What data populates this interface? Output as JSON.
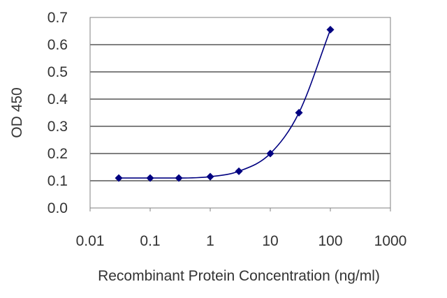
{
  "chart_data": {
    "type": "scatter",
    "title": "",
    "xlabel": "Recombinant Protein Concentration (ng/ml)",
    "ylabel": "OD 450",
    "x_scale": "log",
    "xlim": [
      0.01,
      1000
    ],
    "ylim": [
      0.0,
      0.7
    ],
    "x_ticks": [
      "0.01",
      "0.1",
      "1",
      "10",
      "100",
      "1000"
    ],
    "y_ticks": [
      "0.0",
      "0.1",
      "0.2",
      "0.3",
      "0.4",
      "0.5",
      "0.6",
      "0.7"
    ],
    "grid": "horizontal",
    "fitted_curve": true,
    "colors": {
      "series": "#000080",
      "grid": "#000000",
      "plot_border": "#808080"
    },
    "series": [
      {
        "x": [
          0.03,
          0.1,
          0.3,
          1,
          3,
          10,
          30,
          100
        ],
        "y": [
          0.11,
          0.11,
          0.11,
          0.115,
          0.135,
          0.2,
          0.35,
          0.655
        ]
      }
    ]
  }
}
